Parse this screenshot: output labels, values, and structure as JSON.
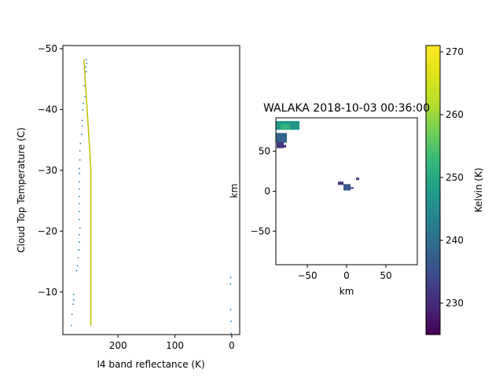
{
  "chart_data": [
    {
      "type": "scatter+line",
      "title": "",
      "xlabel": "I4 band reflectance (K)",
      "ylabel": "Cloud Top Temperature (C)",
      "xlim": [
        297,
        -14
      ],
      "ylim": [
        -3.0,
        -50.5
      ],
      "xticks": [
        200,
        100,
        0
      ],
      "yticks": [
        -50,
        -40,
        -30,
        -20,
        -10
      ],
      "xtick_labels": [
        "200",
        "100",
        "0"
      ],
      "ytick_labels": [
        "−50",
        "−40",
        "−30",
        "−20",
        "−10"
      ],
      "line": {
        "name": "profile",
        "color": "#bfbf00",
        "points": [
          [
            260,
            -48.2
          ],
          [
            248,
            -30.5
          ],
          [
            248,
            -4.4
          ]
        ]
      },
      "scatter": {
        "name": "pixels",
        "color": "#1f77b4",
        "points": [
          [
            256,
            -48.2
          ],
          [
            255,
            -47.6
          ],
          [
            257,
            -47.0
          ],
          [
            256,
            -46.2
          ],
          [
            258,
            -45.2
          ],
          [
            259,
            -43.9
          ],
          [
            258,
            -42.1
          ],
          [
            261,
            -41.0
          ],
          [
            262,
            -39.9
          ],
          [
            263,
            -38.2
          ],
          [
            263,
            -37.3
          ],
          [
            264,
            -35.9
          ],
          [
            266,
            -34.4
          ],
          [
            267,
            -33.2
          ],
          [
            267,
            -31.7
          ],
          [
            268,
            -30.3
          ],
          [
            268,
            -29.5
          ],
          [
            268,
            -28.1
          ],
          [
            268,
            -26.9
          ],
          [
            268,
            -25.7
          ],
          [
            268,
            -24.5
          ],
          [
            268,
            -23.2
          ],
          [
            268,
            -21.9
          ],
          [
            267,
            -20.5
          ],
          [
            268,
            -19.4
          ],
          [
            268,
            -18.2
          ],
          [
            269,
            -16.9
          ],
          [
            270,
            -15.6
          ],
          [
            271,
            -14.3
          ],
          [
            273,
            -13.5
          ],
          [
            278,
            -9.6
          ],
          [
            278,
            -8.7
          ],
          [
            279,
            -8.0
          ],
          [
            281,
            -6.3
          ],
          [
            282,
            -4.5
          ],
          [
            2,
            -12.4
          ],
          [
            2,
            -11.3
          ],
          [
            2,
            -7.1
          ],
          [
            1,
            -5.2
          ],
          [
            1,
            -3.2
          ]
        ]
      }
    },
    {
      "type": "heatmap",
      "title": "WALAKA 2018-10-03 00:36:00",
      "xlabel": "km",
      "ylabel": "km",
      "xlim": [
        -90,
        90
      ],
      "ylim": [
        -92,
        92
      ],
      "xticks": [
        -50,
        0,
        50
      ],
      "yticks": [
        50,
        0,
        -50
      ],
      "xtick_labels": [
        "−50",
        "0",
        "50"
      ],
      "ytick_labels": [
        "50",
        "0",
        "−50"
      ],
      "colormap": "viridis",
      "patches": [
        {
          "name": "northwest-cloud",
          "x": -90,
          "y": 88,
          "w": 30,
          "h": 11,
          "value": 247
        },
        {
          "name": "northwest-cloud-core",
          "x": -84,
          "y": 84,
          "w": 12,
          "h": 7,
          "value": 252
        },
        {
          "name": "northwest-cloud-edge",
          "x": -90,
          "y": 73,
          "w": 14,
          "h": 12,
          "value": 238
        },
        {
          "name": "northwest-cloud-fringe",
          "x": -89,
          "y": 62,
          "w": 9,
          "h": 8,
          "value": 232
        },
        {
          "name": "northwest-cloud-speck",
          "x": -80,
          "y": 58,
          "w": 3,
          "h": 3,
          "value": 228
        },
        {
          "name": "center-cloud-main",
          "x": -4,
          "y": 9,
          "w": 9,
          "h": 8,
          "value": 236
        },
        {
          "name": "center-cloud-left",
          "x": -11,
          "y": 12,
          "w": 7,
          "h": 4,
          "value": 231
        },
        {
          "name": "center-cloud-tail",
          "x": 5,
          "y": 5,
          "w": 4,
          "h": 2,
          "value": 229
        },
        {
          "name": "center-cloud-fragment",
          "x": 12,
          "y": 17,
          "w": 4,
          "h": 3,
          "value": 232
        }
      ],
      "colorbar": {
        "label": "Kelvin (K)",
        "vmin": 225,
        "vmax": 271,
        "ticks": [
          230,
          240,
          250,
          260,
          270
        ],
        "tick_labels": [
          "230",
          "240",
          "250",
          "260",
          "270"
        ]
      }
    }
  ]
}
